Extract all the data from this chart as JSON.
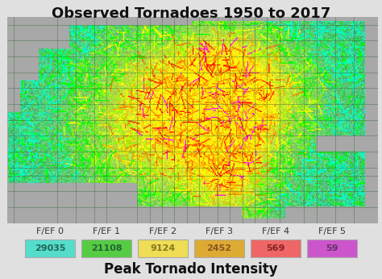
{
  "title": "Observed Tornadoes 1950 to 2017",
  "subtitle": "Peak Tornado Intensity",
  "background_color": "#e0e0e0",
  "map_bg": "#a8a8a8",
  "map_border_color": "#888888",
  "legend": {
    "labels": [
      "F/EF 0",
      "F/EF 1",
      "F/EF 2",
      "F/EF 3",
      "F/EF 4",
      "F/EF 5"
    ],
    "values": [
      "29035",
      "21108",
      "9124",
      "2452",
      "569",
      "59"
    ],
    "colors": [
      "#55ddcc",
      "#55cc44",
      "#eedd55",
      "#ddaa33",
      "#ee6666",
      "#cc55cc"
    ],
    "text_colors": [
      "#226655",
      "#226633",
      "#887722",
      "#885522",
      "#882222",
      "#663366"
    ]
  },
  "title_fontsize": 13,
  "subtitle_fontsize": 12,
  "legend_label_fontsize": 8,
  "legend_val_fontsize": 8,
  "tornado_colors": [
    "#00ffcc",
    "#00ff00",
    "#88ff00",
    "#ffff00",
    "#ffaa00",
    "#ff6600",
    "#ff0000",
    "#ff00ff"
  ],
  "tornado_color_weights": [
    0.25,
    0.2,
    0.2,
    0.15,
    0.1,
    0.05,
    0.03,
    0.02
  ],
  "state_line_color": "#336633",
  "state_line_alpha": 0.7
}
